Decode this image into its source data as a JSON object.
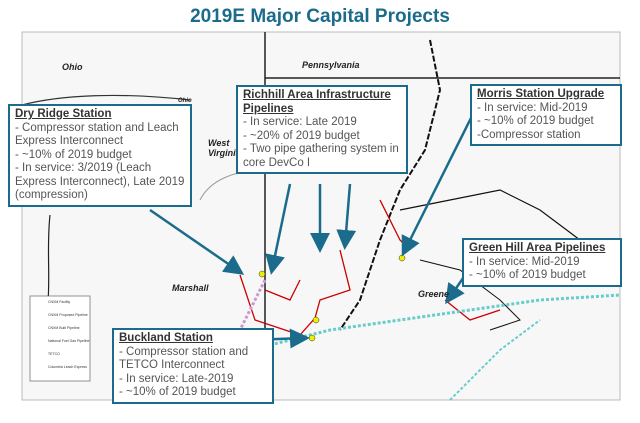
{
  "title": "2019E Major Capital Projects",
  "map_labels": [
    "Ohio",
    "Pennsylvania",
    "Ohio",
    "West Virginia",
    "Marshall",
    "Greene"
  ],
  "legend": [
    "CNXM Facility",
    "CNXM Proposed Pipeline",
    "CNXM Built Pipeline",
    "National Fuel Gas Pipeline",
    "TETCO",
    "Columbia Leach Express"
  ],
  "callouts": [
    {
      "title": "Dry Ridge Station",
      "lines": [
        "- Compressor station and Leach Express Interconnect",
        "- ~10% of 2019 budget",
        "- In service: 3/2019 (Leach Express Interconnect), Late 2019 (compression)"
      ]
    },
    {
      "title": "Richhill Area Infrastructure Pipelines",
      "lines": [
        "- In service: Late 2019",
        "- ~20% of 2019 budget",
        "- Two pipe gathering system in core DevCo I"
      ]
    },
    {
      "title": "Morris Station Upgrade",
      "lines": [
        "- In service: Mid-2019",
        "- ~10% of 2019 budget",
        "-Compressor station"
      ]
    },
    {
      "title": "Green Hill Area Pipelines",
      "lines": [
        "- In service: Mid-2019",
        "- ~10% of 2019 budget"
      ]
    },
    {
      "title": "Buckland Station",
      "lines": [
        "- Compressor station and TETCO Interconnect",
        "- In service: Late-2019",
        "- ~10% of 2019 budget"
      ]
    }
  ]
}
